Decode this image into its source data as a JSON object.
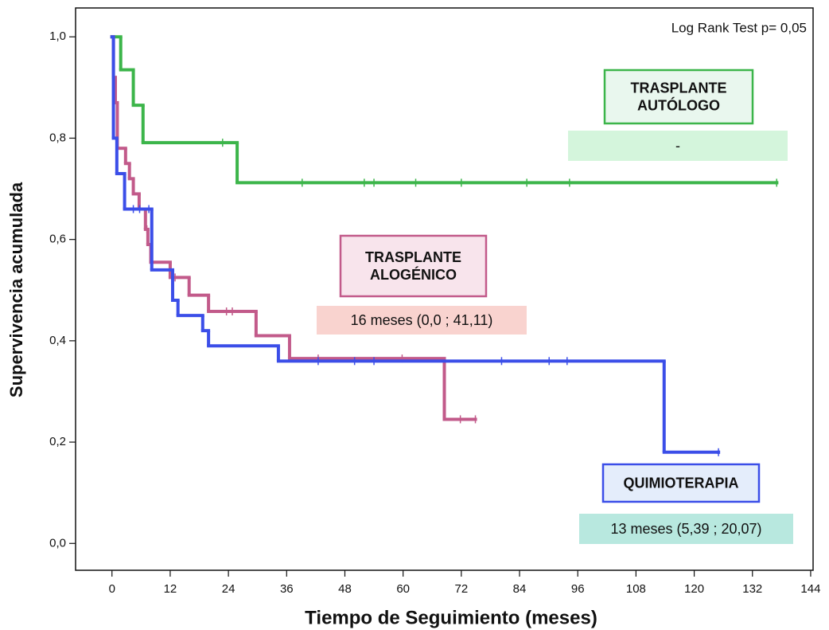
{
  "chart_data": {
    "type": "survival",
    "x_label": "Tiempo de Seguimiento (meses)",
    "y_label": "Supervivencia acumulada",
    "annotation": "Log Rank Test p= 0,05",
    "xlim": [
      -7.5,
      144.5
    ],
    "ylim": [
      -0.053,
      1.057
    ],
    "xticks": [
      0,
      12,
      24,
      36,
      48,
      60,
      72,
      84,
      96,
      108,
      120,
      132,
      144
    ],
    "yticks": [
      {
        "value": 0,
        "label": "0,0"
      },
      {
        "value": 0.2,
        "label": "0,2"
      },
      {
        "value": 0.4,
        "label": "0,4"
      },
      {
        "value": 0.6,
        "label": "0,6"
      },
      {
        "value": 0.8,
        "label": "0,8"
      },
      {
        "value": 1,
        "label": "1,0"
      }
    ],
    "series": [
      {
        "label": [
          "TRASPLANTE",
          "AUTÓLOGO"
        ],
        "median": "-",
        "color": "#3cb54a",
        "box_fill": "#e9f7ee",
        "median_fill": "#d4f5dc",
        "x": [
          0,
          1.8,
          4.4,
          6.4,
          25.8,
          137
        ],
        "values": [
          1,
          0.935,
          0.865,
          0.791,
          0.712,
          0.712
        ],
        "censored": {
          "x": [
            22.8,
            39.2,
            52,
            54,
            62.6,
            72,
            85.5,
            94.3,
            137
          ],
          "values": [
            0.791,
            0.712,
            0.712,
            0.712,
            0.712,
            0.712,
            0.712,
            0.712,
            0.712
          ]
        }
      },
      {
        "label": [
          "TRASPLANTE",
          "ALOGÉNICO"
        ],
        "median": "16 meses (0,0 ; 41,11)",
        "color": "#c25a8a",
        "box_fill": "#f8e4ec",
        "median_fill": "#f9d3cf",
        "x": [
          0,
          0.3,
          0.7,
          1.1,
          2.8,
          3.6,
          4.4,
          5.6,
          6.9,
          7.4,
          8,
          12,
          15.9,
          19.9,
          29.7,
          36.6,
          68.5,
          74.9
        ],
        "values": [
          1,
          0.92,
          0.87,
          0.78,
          0.75,
          0.72,
          0.69,
          0.66,
          0.62,
          0.59,
          0.555,
          0.525,
          0.49,
          0.458,
          0.41,
          0.365,
          0.245,
          0.245
        ],
        "censored": {
          "x": [
            7.2,
            13,
            23.6,
            24.8,
            42.5,
            59.8,
            71.8,
            74.9
          ],
          "values": [
            0.62,
            0.525,
            0.458,
            0.458,
            0.365,
            0.365,
            0.245,
            0.245
          ]
        }
      },
      {
        "label": [
          "QUIMIOTERAPIA"
        ],
        "median": "13 meses (5,39 ; 20,07)",
        "color": "#3b4ee8",
        "box_fill": "#e4edfb",
        "median_fill": "#b8e8df",
        "x": [
          0,
          0.3,
          1,
          2.6,
          8.2,
          12.5,
          13.6,
          18.7,
          19.9,
          34.3,
          113.8,
          125
        ],
        "values": [
          1,
          0.8,
          0.73,
          0.66,
          0.54,
          0.48,
          0.45,
          0.42,
          0.39,
          0.36,
          0.18,
          0.18
        ],
        "censored": {
          "x": [
            4.4,
            5.7,
            7.6,
            42.5,
            50,
            54,
            80.3,
            90.1,
            93.8,
            125
          ],
          "values": [
            0.66,
            0.66,
            0.66,
            0.36,
            0.36,
            0.36,
            0.36,
            0.36,
            0.36,
            0.18
          ]
        }
      }
    ]
  }
}
